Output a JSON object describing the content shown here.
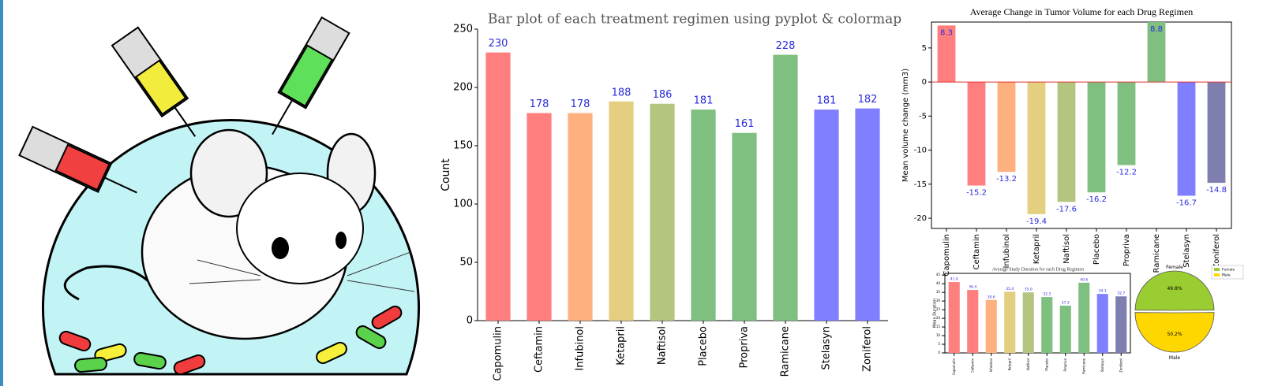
{
  "chart_data": [
    {
      "type": "bar",
      "title": "Bar plot of each treatment regimen using pyplot & colormap",
      "ylabel": "Count",
      "categories": [
        "Capomulin",
        "Ceftamin",
        "Infubinol",
        "Ketapril",
        "Naftisol",
        "Placebo",
        "Propriva",
        "Ramicane",
        "Stelasyn",
        "Zoniferol"
      ],
      "values": [
        230,
        178,
        178,
        188,
        186,
        181,
        161,
        228,
        181,
        182
      ],
      "colors": [
        "#ff7f7f",
        "#ff7f7f",
        "#ffb07f",
        "#e3cf7f",
        "#b4c57f",
        "#7fbf7f",
        "#7fbf7f",
        "#7fbf7f",
        "#7f7fff",
        "#7f7fff"
      ],
      "ylim": [
        0,
        250
      ],
      "yticks": [
        0,
        50,
        100,
        150,
        200,
        250
      ]
    },
    {
      "type": "bar",
      "title": "Average Change in Tumor Volume for each Drug Regimen",
      "ylabel": "Mean volume change (mm3)",
      "categories": [
        "Capomulin",
        "Ceftamin",
        "Infubinol",
        "Ketapril",
        "Naftisol",
        "Placebo",
        "Propriva",
        "Ramicane",
        "Stelasyn",
        "Zoniferol"
      ],
      "values": [
        8.3,
        -15.2,
        -13.2,
        -19.4,
        -17.6,
        -16.2,
        -12.2,
        8.8,
        -16.7,
        -14.8
      ],
      "colors": [
        "#ff7f7f",
        "#ff7f7f",
        "#ffb07f",
        "#e3cf7f",
        "#b4c57f",
        "#7fbf7f",
        "#7fbf7f",
        "#7fbf7f",
        "#7f7fff",
        "#7f7faf"
      ],
      "ylim": [
        -21.5,
        8.8
      ],
      "yticks": [
        -20,
        -15,
        -10,
        -5,
        0,
        5
      ]
    },
    {
      "type": "bar",
      "title": "Average Study Duration for each Drug Regimen",
      "ylabel": "Mean Duration",
      "categories": [
        "Capomulin",
        "Ceftamin",
        "Infubinol",
        "Ketapril",
        "Naftisol",
        "Placebo",
        "Propriva",
        "Ramicane",
        "Stelasyn",
        "Zoniferol"
      ],
      "values": [
        41.0,
        36.4,
        30.6,
        35.4,
        35.0,
        32.3,
        27.3,
        40.6,
        34.1,
        32.7
      ],
      "value_labels": [
        "41.0",
        "36.4",
        "30.6",
        "35.4",
        "35.0",
        "32.3",
        "27.3",
        "40.6",
        "34.1",
        "32.7"
      ],
      "colors": [
        "#ff7f7f",
        "#ff7f7f",
        "#ffb07f",
        "#e3cf7f",
        "#b4c57f",
        "#7fbf7f",
        "#7fbf7f",
        "#7fbf7f",
        "#7f7fff",
        "#7f7faf"
      ],
      "ylim": [
        0,
        46
      ],
      "yticks": [
        0,
        5,
        10,
        15,
        20,
        25,
        30,
        35,
        40,
        45
      ]
    },
    {
      "type": "pie",
      "categories": [
        "Female",
        "Male"
      ],
      "values": [
        49.8,
        50.2
      ],
      "value_labels": [
        "49.8%",
        "50.2%"
      ],
      "colors": [
        "#9acd32",
        "#ffd700"
      ],
      "legend": "upper right"
    }
  ]
}
